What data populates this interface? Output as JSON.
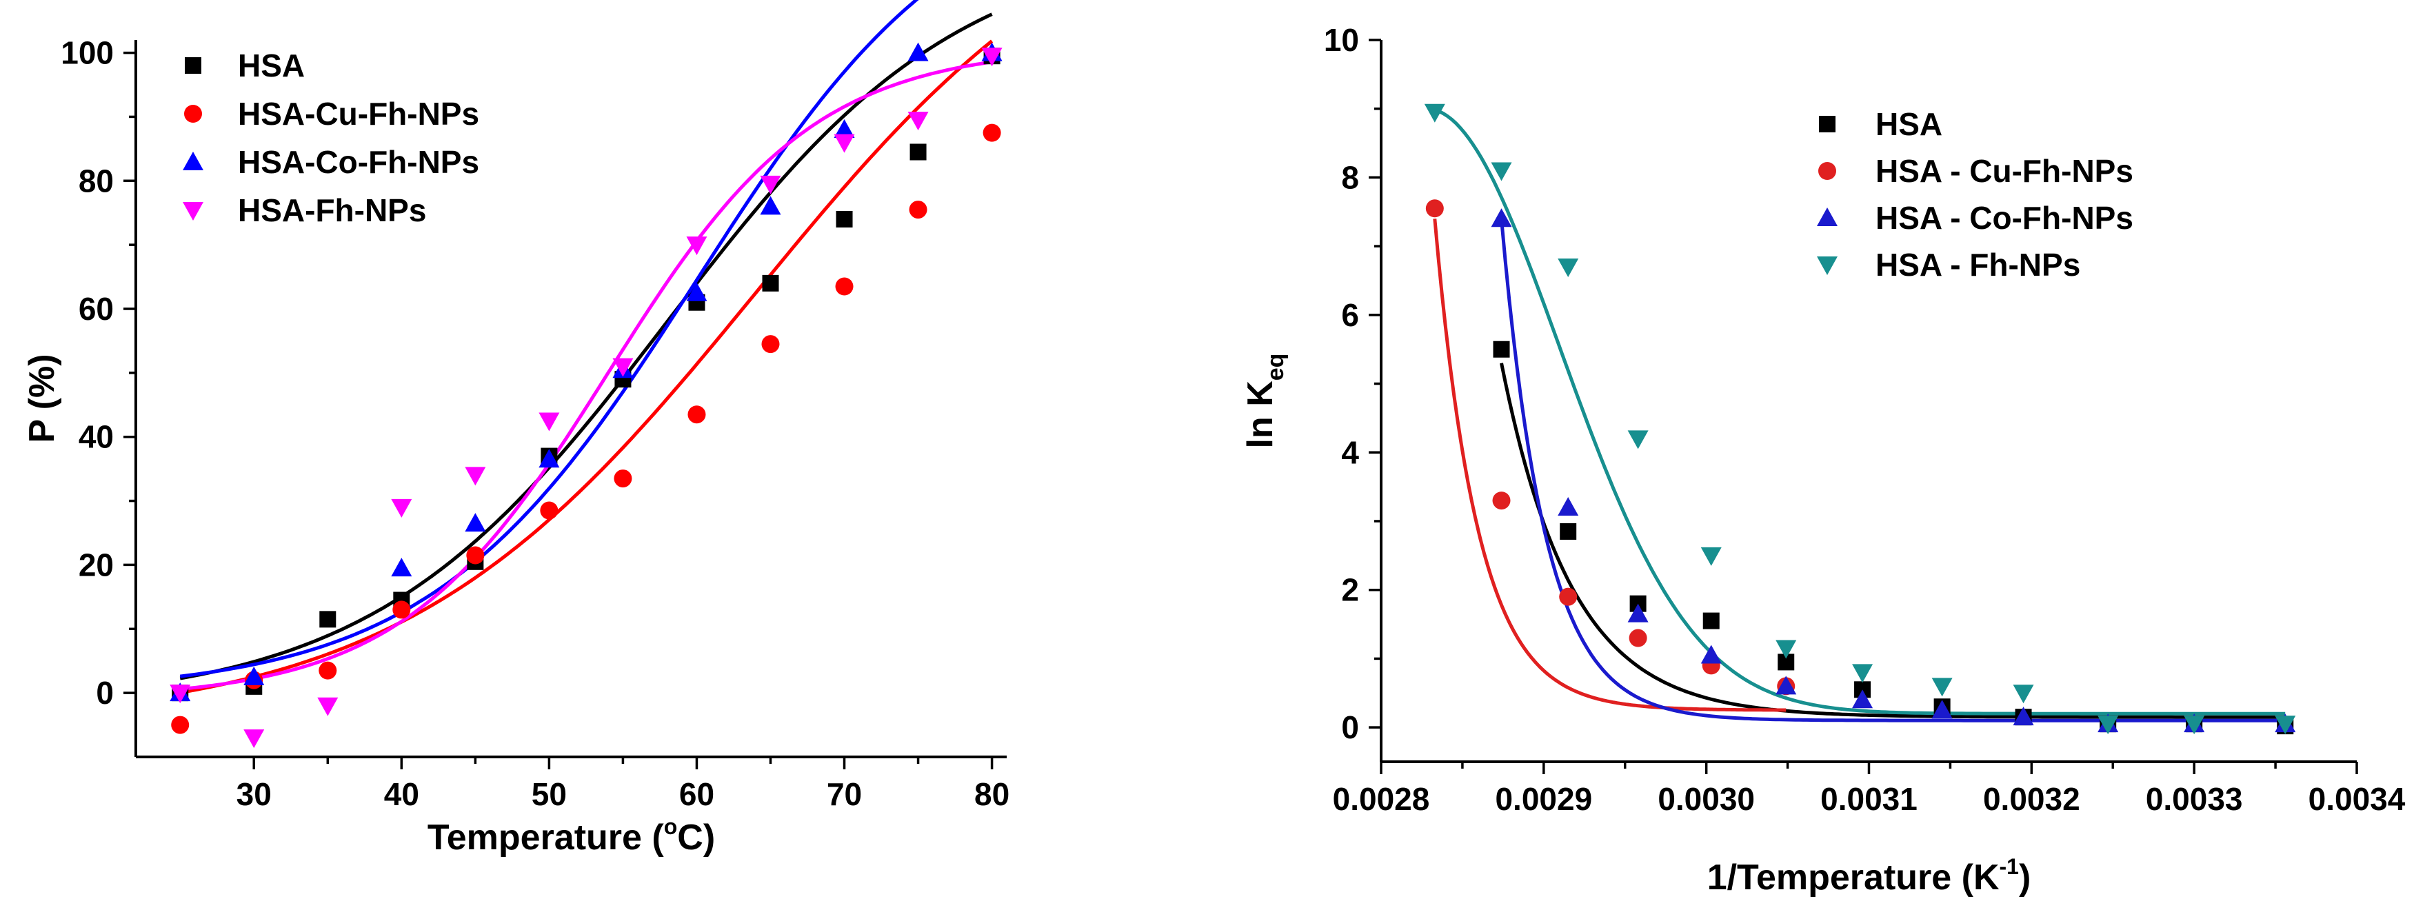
{
  "chart_data": [
    {
      "type": "scatter",
      "xlabel": {
        "main": "Temperature (",
        "sup": "o",
        "tail": "C)"
      },
      "ylabel": "P (%)",
      "xlim": [
        22,
        81
      ],
      "ylim": [
        -10,
        102
      ],
      "xticks": [
        30,
        40,
        50,
        60,
        70,
        80
      ],
      "yticks": [
        0,
        20,
        40,
        60,
        80,
        100
      ],
      "legend_position": "top-left",
      "fit_type": "logistic",
      "series": [
        {
          "name": "HSA",
          "color": "#000000",
          "marker": "square",
          "x": [
            25,
            30,
            35,
            40,
            45,
            50,
            55,
            60,
            65,
            70,
            75,
            80
          ],
          "y": [
            0,
            1,
            11.5,
            14.5,
            20.5,
            37,
            49,
            61,
            64,
            74,
            84.5,
            99.5
          ],
          "fit": {
            "A1": -2,
            "A2": 118,
            "x0": 58,
            "dx": 10
          }
        },
        {
          "name": "HSA-Cu-Fh-NPs",
          "color": "#ff0000",
          "marker": "circle",
          "x": [
            25,
            30,
            35,
            40,
            45,
            50,
            55,
            60,
            65,
            70,
            75,
            80
          ],
          "y": [
            -5,
            2,
            3.5,
            13,
            21.5,
            28.5,
            33.5,
            43.5,
            54.5,
            63.5,
            75.5,
            87.5
          ],
          "fit": {
            "A1": -5,
            "A2": 130,
            "x0": 64,
            "dx": 12
          }
        },
        {
          "name": "HSA-Co-Fh-NPs",
          "color": "#0000ff",
          "marker": "triangle-up",
          "x": [
            25,
            30,
            40,
            45,
            50,
            55,
            60,
            65,
            70,
            75,
            80
          ],
          "y": [
            0,
            2.5,
            19.5,
            26.5,
            36.5,
            50.5,
            62.5,
            76,
            88,
            100,
            100
          ],
          "fit": {
            "A1": 0,
            "A2": 129,
            "x0": 60,
            "dx": 9
          }
        },
        {
          "name": "HSA-Fh-NPs",
          "color": "#ff00ff",
          "marker": "triangle-down",
          "x": [
            25,
            30,
            35,
            40,
            45,
            50,
            55,
            60,
            65,
            70,
            75,
            80
          ],
          "y": [
            0,
            -7,
            -2,
            29,
            34,
            42.5,
            51,
            70,
            79.5,
            86,
            89.5,
            99.5
          ],
          "fit": {
            "A1": -1,
            "A2": 101,
            "x0": 54,
            "dx": 7
          }
        }
      ]
    },
    {
      "type": "scatter",
      "xlabel": {
        "main": "1/Temperature (K",
        "sup": "-1",
        "tail": ")"
      },
      "ylabel": {
        "main": "ln K",
        "sub": "eq"
      },
      "xlim": [
        0.0028,
        0.0034
      ],
      "ylim": [
        -0.5,
        10
      ],
      "xticks": [
        0.0028,
        0.0029,
        0.003,
        0.0031,
        0.0032,
        0.0033,
        0.0034
      ],
      "xtick_labels": [
        "0.0028",
        "0.0029",
        "0.0030",
        "0.0031",
        "0.0032",
        "0.0033",
        "0.0034"
      ],
      "yticks": [
        0,
        2,
        4,
        6,
        8,
        10
      ],
      "legend_position": "top-right",
      "fit_type": "decay",
      "series": [
        {
          "name": "HSA",
          "color": "#000000",
          "marker": "square",
          "x": [
            0.002874,
            0.002915,
            0.002958,
            0.003003,
            0.003049,
            0.003096,
            0.003145,
            0.003195,
            0.003247,
            0.0033,
            0.003356
          ],
          "y": [
            5.5,
            2.85,
            1.8,
            1.55,
            0.95,
            0.55,
            0.3,
            0.15,
            0.05,
            0.05,
            0.02
          ],
          "fit": {
            "c": 0.15,
            "x_start": 0.002874,
            "y_start": 5.3,
            "tau": 4.32e-05
          }
        },
        {
          "name": "HSA - Cu-Fh-NPs",
          "color": "#e02020",
          "marker": "circle",
          "x": [
            0.002833,
            0.002874,
            0.002915,
            0.002958,
            0.003003,
            0.003049
          ],
          "y": [
            7.55,
            3.3,
            1.9,
            1.3,
            0.9,
            0.6
          ],
          "fit": {
            "c": 0.25,
            "x_start": 0.002833,
            "y_start": 7.4,
            "tau": 2.66e-05
          }
        },
        {
          "name": "HSA - Co-Fh-NPs",
          "color": "#1a1acd",
          "marker": "triangle-up",
          "x": [
            0.002874,
            0.002915,
            0.002958,
            0.003003,
            0.003049,
            0.003096,
            0.003145,
            0.003195,
            0.003247,
            0.0033,
            0.003356
          ],
          "y": [
            7.4,
            3.2,
            1.65,
            1.05,
            0.6,
            0.4,
            0.25,
            0.15,
            0.05,
            0.05,
            0.05
          ],
          "fit": {
            "c": 0.1,
            "x_start": 0.002874,
            "y_start": 7.4,
            "tau": 2.72e-05
          }
        },
        {
          "name": "HSA - Fh-NPs",
          "color": "#178f8f",
          "marker": "triangle-down",
          "x": [
            0.002833,
            0.002874,
            0.002915,
            0.002958,
            0.003003,
            0.003049,
            0.003096,
            0.003145,
            0.003195,
            0.003247,
            0.0033,
            0.003356
          ],
          "y": [
            8.95,
            8.1,
            6.7,
            4.2,
            2.5,
            1.15,
            0.8,
            0.6,
            0.5,
            0.05,
            0.05,
            0.05
          ],
          "fit": {
            "c": 0.2,
            "x_peak": 0.002828,
            "y_peak": 9.0,
            "sigma": 8.17e-05
          }
        }
      ]
    }
  ]
}
